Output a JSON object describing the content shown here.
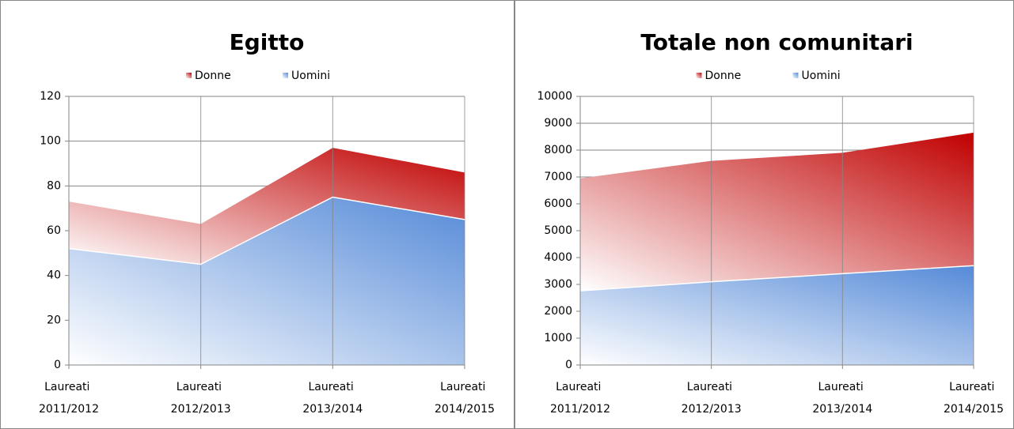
{
  "chart_data": [
    {
      "type": "area",
      "stacked": true,
      "title": "Egitto",
      "categories": [
        "Laureati 2011/2012",
        "Laureati 2012/2013",
        "Laureati 2013/2014",
        "Laureati 2014/2015"
      ],
      "series": [
        {
          "name": "Donne",
          "color": "#c00000",
          "values": [
            21,
            18,
            22,
            21
          ]
        },
        {
          "name": "Uomini",
          "color": "#558ad8",
          "values": [
            52,
            45,
            75,
            65
          ]
        }
      ],
      "ylim": [
        0,
        120
      ],
      "yticks": [
        0,
        20,
        40,
        60,
        80,
        100,
        120
      ],
      "grid": true,
      "legend": "top"
    },
    {
      "type": "area",
      "stacked": true,
      "title": "Totale non comunitari",
      "categories": [
        "Laureati 2011/2012",
        "Laureati 2012/2013",
        "Laureati 2013/2014",
        "Laureati 2014/2015"
      ],
      "series": [
        {
          "name": "Donne",
          "color": "#c00000",
          "values": [
            4190,
            4500,
            4500,
            4950
          ]
        },
        {
          "name": "Uomini",
          "color": "#558ad8",
          "values": [
            2760,
            3100,
            3400,
            3700
          ]
        }
      ],
      "ylim": [
        0,
        10000
      ],
      "yticks": [
        0,
        1000,
        2000,
        3000,
        4000,
        5000,
        6000,
        7000,
        8000,
        9000,
        10000
      ],
      "grid": true,
      "legend": "top"
    }
  ]
}
